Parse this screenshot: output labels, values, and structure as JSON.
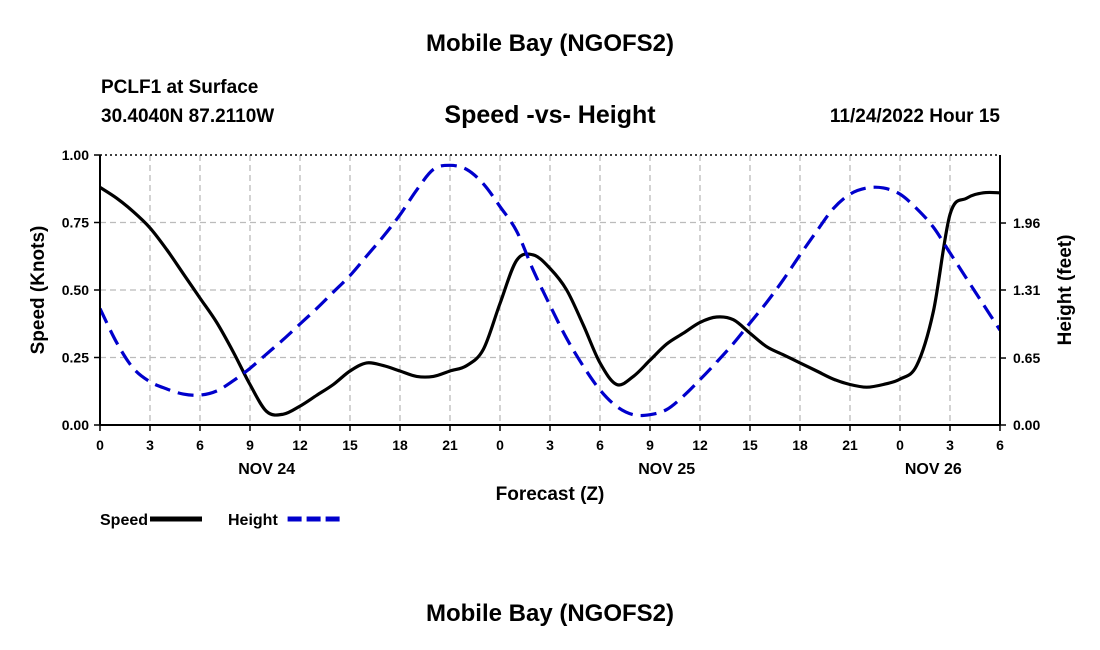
{
  "page": {
    "title": "Mobile Bay (NGOFS2)",
    "bottom_title": "Mobile Bay (NGOFS2)",
    "station": "PCLF1 at Surface",
    "coords": "30.4040N  87.2110W",
    "subtitle": "Speed -vs- Height",
    "datetime": "11/24/2022 Hour 15"
  },
  "chart_data": {
    "type": "line",
    "title": "Speed -vs- Height",
    "xlabel": "Forecast (Z)",
    "ylabel_left": "Speed (Knots)",
    "ylabel_right": "Height (feet)",
    "x_range_hours": [
      0,
      54
    ],
    "x_tick_step_hours": 3,
    "x_tick_labels": [
      "0",
      "3",
      "6",
      "9",
      "12",
      "15",
      "18",
      "21",
      "0",
      "3",
      "6",
      "9",
      "12",
      "15",
      "18",
      "21",
      "0",
      "3",
      "6"
    ],
    "date_labels": [
      {
        "label": "NOV 24",
        "hour": 10
      },
      {
        "label": "NOV 25",
        "hour": 34
      },
      {
        "label": "NOV 26",
        "hour": 50
      }
    ],
    "y_left": {
      "range": [
        0,
        1
      ],
      "ticks": [
        0,
        0.25,
        0.5,
        0.75,
        1.0
      ],
      "tick_labels": [
        "0.00",
        "0.25",
        "0.50",
        "0.75",
        "1.00"
      ]
    },
    "y_right": {
      "range": [
        0,
        2.62
      ],
      "ticks": [
        0,
        0.65,
        1.31,
        1.96
      ],
      "tick_labels": [
        "0.00",
        "0.65",
        "1.31",
        "1.96"
      ]
    },
    "grid": true,
    "series": [
      {
        "name": "Speed",
        "axis": "left",
        "color": "#000000",
        "dash": "solid",
        "x": [
          0,
          1,
          2,
          3,
          4,
          5,
          6,
          7,
          8,
          9,
          10,
          11,
          12,
          13,
          14,
          15,
          16,
          17,
          18,
          19,
          20,
          21,
          22,
          23,
          24,
          25,
          26,
          27,
          28,
          29,
          30,
          31,
          32,
          33,
          34,
          35,
          36,
          37,
          38,
          39,
          40,
          41,
          42,
          43,
          44,
          45,
          46,
          47,
          48,
          49,
          50,
          51,
          52,
          53,
          54
        ],
        "values": [
          0.88,
          0.84,
          0.79,
          0.73,
          0.65,
          0.56,
          0.47,
          0.38,
          0.27,
          0.15,
          0.05,
          0.04,
          0.07,
          0.11,
          0.15,
          0.2,
          0.23,
          0.22,
          0.2,
          0.18,
          0.18,
          0.2,
          0.22,
          0.28,
          0.45,
          0.61,
          0.63,
          0.58,
          0.5,
          0.37,
          0.23,
          0.15,
          0.18,
          0.24,
          0.3,
          0.34,
          0.38,
          0.4,
          0.39,
          0.34,
          0.29,
          0.26,
          0.23,
          0.2,
          0.17,
          0.15,
          0.14,
          0.15,
          0.17,
          0.22,
          0.42,
          0.78,
          0.84,
          0.86,
          0.86
        ]
      },
      {
        "name": "Height",
        "axis": "right",
        "color": "#0000cc",
        "dash": "dashed",
        "x": [
          0,
          1,
          2,
          3,
          4,
          5,
          6,
          7,
          8,
          9,
          10,
          11,
          12,
          13,
          14,
          15,
          16,
          17,
          18,
          19,
          20,
          21,
          22,
          23,
          24,
          25,
          26,
          27,
          28,
          29,
          30,
          31,
          32,
          33,
          34,
          35,
          36,
          37,
          38,
          39,
          40,
          41,
          42,
          43,
          44,
          45,
          46,
          47,
          48,
          49,
          50,
          51,
          52,
          53,
          54
        ],
        "values": [
          1.13,
          0.8,
          0.55,
          0.42,
          0.35,
          0.3,
          0.29,
          0.33,
          0.43,
          0.55,
          0.69,
          0.83,
          0.98,
          1.13,
          1.29,
          1.45,
          1.64,
          1.83,
          2.04,
          2.28,
          2.48,
          2.52,
          2.48,
          2.34,
          2.12,
          1.88,
          1.5,
          1.16,
          0.84,
          0.57,
          0.34,
          0.18,
          0.1,
          0.1,
          0.15,
          0.28,
          0.44,
          0.61,
          0.79,
          0.99,
          1.19,
          1.41,
          1.65,
          1.88,
          2.1,
          2.24,
          2.3,
          2.3,
          2.24,
          2.1,
          1.92,
          1.67,
          1.42,
          1.17,
          0.92
        ]
      }
    ],
    "legend": [
      {
        "label": "Speed",
        "color": "#000000",
        "dash": "solid"
      },
      {
        "label": "Height",
        "color": "#0000cc",
        "dash": "dashed"
      }
    ],
    "legend_position": "bottom-left"
  }
}
